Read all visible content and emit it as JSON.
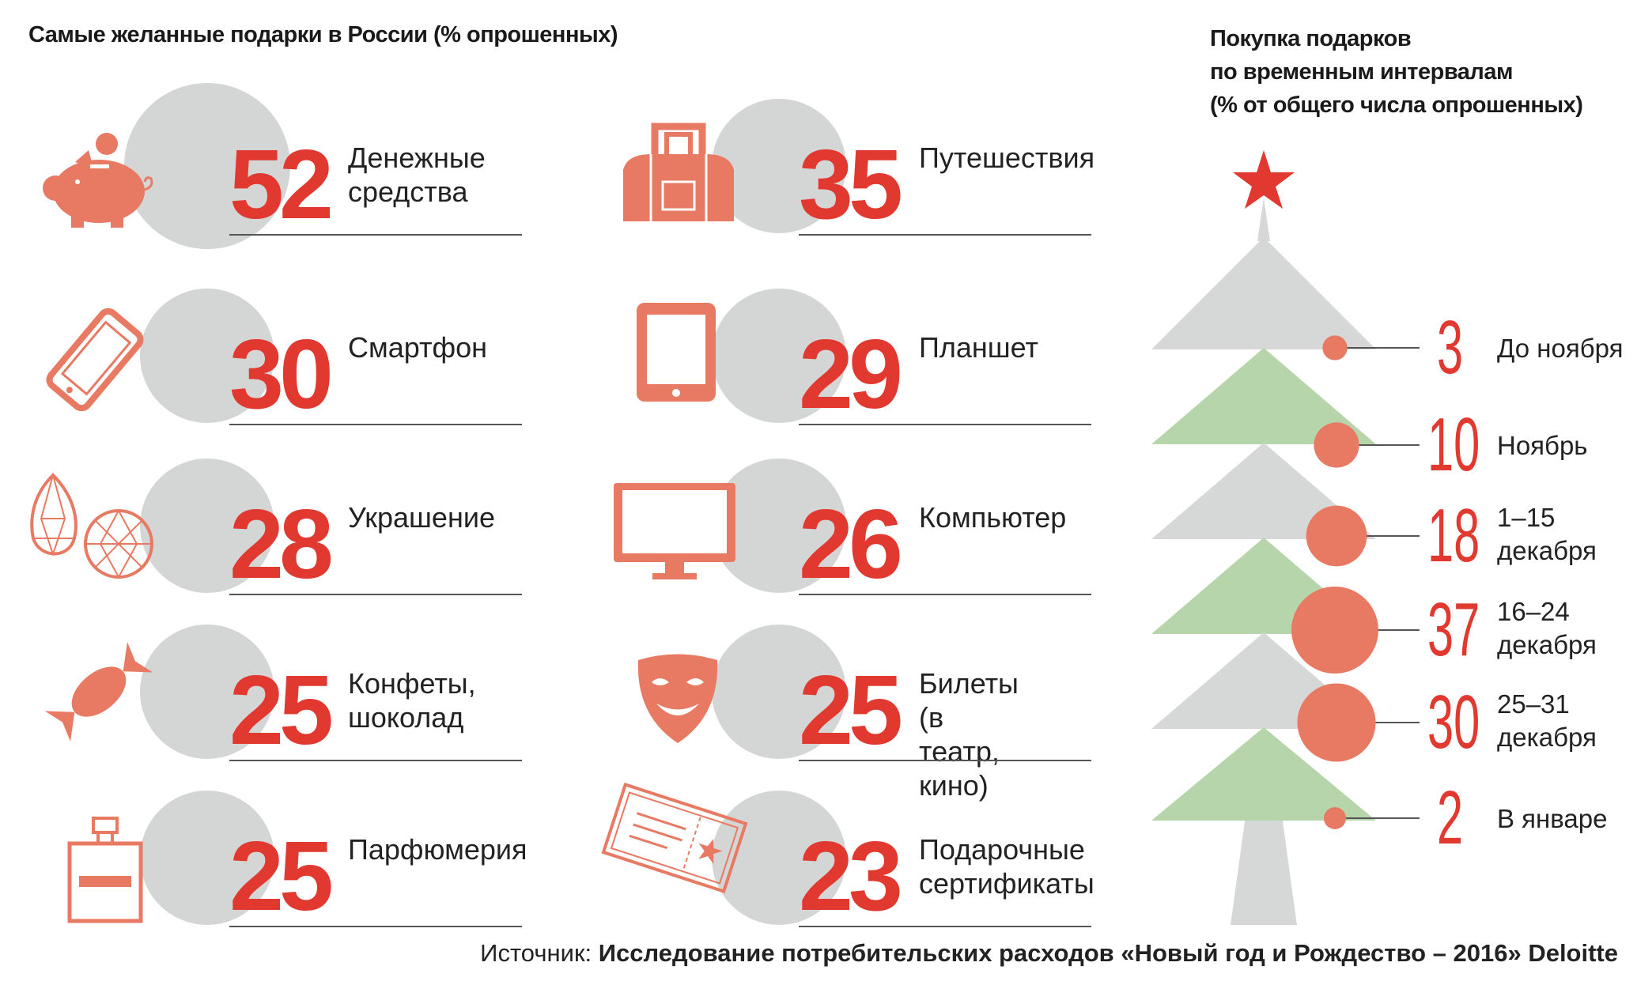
{
  "left_title": "Самые желанные подарки в России (% опрошенных)",
  "right_title_lines": [
    "Покупка подарков",
    "по временным интервалам",
    "(% от общего числа опрошенных)"
  ],
  "chart_data": [
    {
      "type": "bar",
      "title": "Самые желанные подарки в России (% опрошенных)",
      "categories": [
        "Денежные средства",
        "Смартфон",
        "Украшение",
        "Конфеты, шоколад",
        "Парфюмерия",
        "Путешествия",
        "Планшет",
        "Компьютер",
        "Билеты (в театр, кино)",
        "Подарочные сертификаты"
      ],
      "values": [
        52,
        30,
        28,
        25,
        25,
        35,
        29,
        26,
        25,
        23
      ],
      "items": [
        {
          "value": "52",
          "label_lines": [
            "Денежные",
            "средства"
          ],
          "icon": "piggy-bank-icon"
        },
        {
          "value": "30",
          "label_lines": [
            "Смартфон"
          ],
          "icon": "smartphone-icon"
        },
        {
          "value": "28",
          "label_lines": [
            "Украшение"
          ],
          "icon": "gems-icon"
        },
        {
          "value": "25",
          "label_lines": [
            "Конфеты,",
            "шоколад"
          ],
          "icon": "candy-icon"
        },
        {
          "value": "25",
          "label_lines": [
            "Парфюмерия"
          ],
          "icon": "perfume-icon"
        },
        {
          "value": "35",
          "label_lines": [
            "Путешествия"
          ],
          "icon": "travel-bag-icon"
        },
        {
          "value": "29",
          "label_lines": [
            "Планшет"
          ],
          "icon": "tablet-icon"
        },
        {
          "value": "26",
          "label_lines": [
            "Компьютер"
          ],
          "icon": "monitor-icon"
        },
        {
          "value": "25",
          "label_lines": [
            "Билеты",
            "(в театр, кино)"
          ],
          "icon": "theatre-mask-icon"
        },
        {
          "value": "23",
          "label_lines": [
            "Подарочные",
            "сертификаты"
          ],
          "icon": "gift-certificate-icon"
        }
      ]
    },
    {
      "type": "bar",
      "title": "Покупка подарков по временным интервалам (% от общего числа опрошенных)",
      "categories": [
        "До ноября",
        "Ноябрь",
        "1–15 декабря",
        "16–24 декабря",
        "25–31 декабря",
        "В январе"
      ],
      "values": [
        3,
        10,
        18,
        37,
        30,
        2
      ],
      "intervals": [
        {
          "value": "3",
          "label_lines": [
            "До ноября"
          ]
        },
        {
          "value": "10",
          "label_lines": [
            "Ноябрь"
          ]
        },
        {
          "value": "18",
          "label_lines": [
            "1–15",
            "декабря"
          ]
        },
        {
          "value": "37",
          "label_lines": [
            "16–24",
            "декабря"
          ]
        },
        {
          "value": "30",
          "label_lines": [
            "25–31",
            "декабря"
          ]
        },
        {
          "value": "2",
          "label_lines": [
            "В январе"
          ]
        }
      ]
    }
  ],
  "source": {
    "prefix": "Источник: ",
    "text": "Исследование потребительских расходов «Новый год и Рождество – 2016» Deloitte"
  },
  "colors": {
    "accent_red": "#e1382f",
    "salmon": "#e87a63",
    "gray": "#d3d6d5",
    "tree_green": "#b7d5aa",
    "tree_gray": "#d6d8d7"
  }
}
